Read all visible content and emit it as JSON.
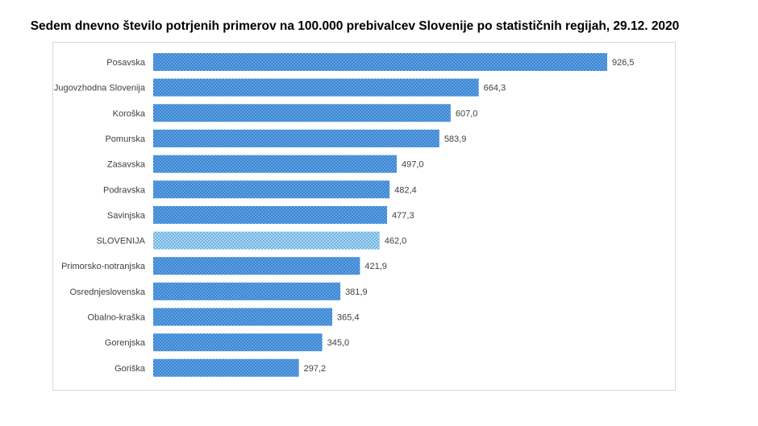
{
  "chart_data": {
    "type": "bar",
    "orientation": "horizontal",
    "title": "Sedem dnevno število potrjenih primerov na 100.000 prebivalcev Slovenije po statističnih regijah, 29.12. 2020",
    "categories": [
      "Posavska",
      "Jugovzhodna Slovenija",
      "Koroška",
      "Pomurska",
      "Zasavska",
      "Podravska",
      "Savinjska",
      "SLOVENIJA",
      "Primorsko-notranjska",
      "Osrednjeslovenska",
      "Obalno-kraška",
      "Gorenjska",
      "Goriška"
    ],
    "values": [
      926.5,
      664.3,
      607.0,
      583.9,
      497.0,
      482.4,
      477.3,
      462.0,
      421.9,
      381.9,
      365.4,
      345.0,
      297.2
    ],
    "data_labels": [
      "926,5",
      "664,3",
      "607,0",
      "583,9",
      "497,0",
      "482,4",
      "477,3",
      "462,0",
      "421,9",
      "381,9",
      "365,4",
      "345,0",
      "297,2"
    ],
    "highlight_category": "SLOVENIJA",
    "colors": {
      "bar": "#3a86d4",
      "bar_dots": "#9cc8ef",
      "highlight": "#9fd3ee",
      "highlight_dots": "#3a86d4"
    },
    "grid": false,
    "legend": "none"
  }
}
